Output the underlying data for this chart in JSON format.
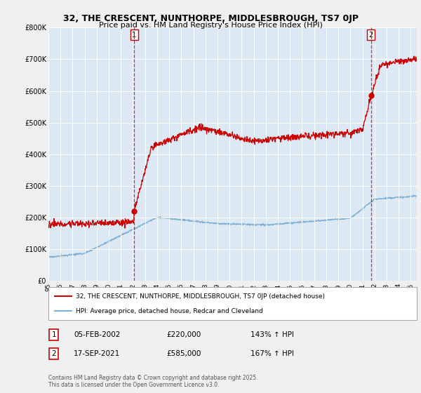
{
  "title_line1": "32, THE CRESCENT, NUNTHORPE, MIDDLESBROUGH, TS7 0JP",
  "title_line2": "Price paid vs. HM Land Registry's House Price Index (HPI)",
  "legend_label_red": "32, THE CRESCENT, NUNTHORPE, MIDDLESBROUGH, TS7 0JP (detached house)",
  "legend_label_blue": "HPI: Average price, detached house, Redcar and Cleveland",
  "annotation1_date": "05-FEB-2002",
  "annotation1_price": "£220,000",
  "annotation1_hpi": "143% ↑ HPI",
  "annotation2_date": "17-SEP-2021",
  "annotation2_price": "£585,000",
  "annotation2_hpi": "167% ↑ HPI",
  "footer": "Contains HM Land Registry data © Crown copyright and database right 2025.\nThis data is licensed under the Open Government Licence v3.0.",
  "ylim": [
    0,
    800000
  ],
  "yticks": [
    0,
    100000,
    200000,
    300000,
    400000,
    500000,
    600000,
    700000,
    800000
  ],
  "ytick_labels": [
    "£0",
    "£100K",
    "£200K",
    "£300K",
    "£400K",
    "£500K",
    "£600K",
    "£700K",
    "£800K"
  ],
  "red_color": "#cc0000",
  "blue_color": "#7bafd4",
  "vline_color": "#cc0000",
  "marker1_x": 2002.09,
  "marker1_y": 220000,
  "marker2_x": 2021.71,
  "marker2_y": 585000,
  "vline1_x": 2002.09,
  "vline2_x": 2021.71,
  "background_color": "#f0f0f0",
  "plot_bg_color": "#dce9f5",
  "grid_color": "#ffffff",
  "xmin": 1995,
  "xmax": 2025.5
}
